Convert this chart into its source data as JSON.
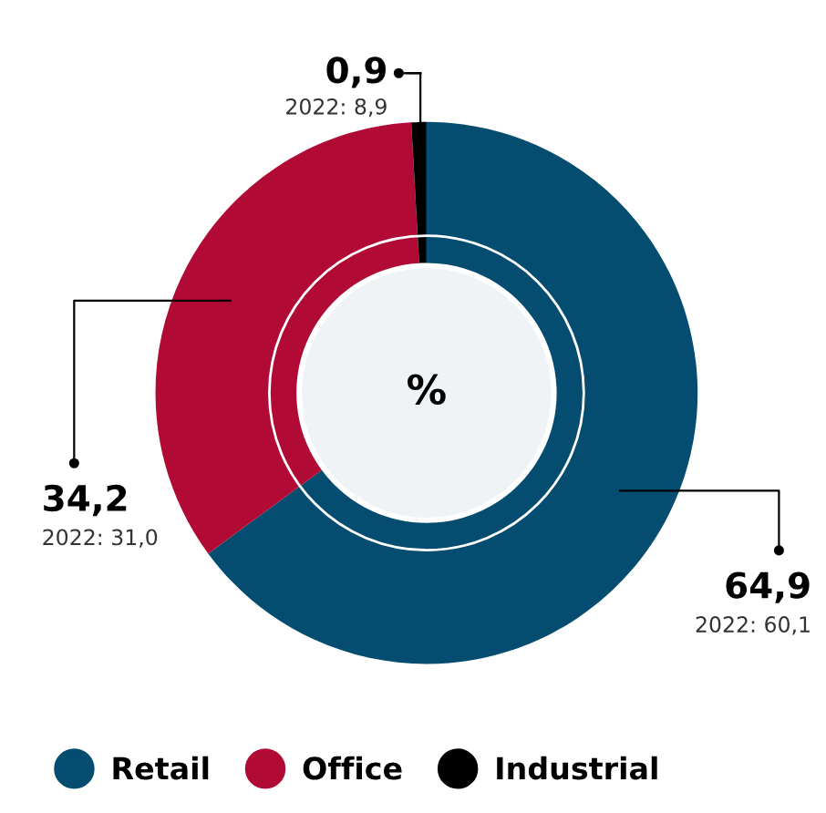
{
  "chart_data": {
    "type": "donut",
    "categories": [
      "Retail",
      "Office",
      "Industrial"
    ],
    "values": [
      64.9,
      34.2,
      0.9
    ],
    "colors": [
      "#044d70",
      "#b00a35",
      "#000000"
    ],
    "value_labels": [
      "64,9",
      "34,2",
      "0,9"
    ],
    "annotations": [
      "%",
      {
        "text": "2022: 60,1",
        "x": "Retail"
      },
      {
        "text": "2022: 31,0",
        "x": "Office"
      },
      {
        "text": "2022: 8,9",
        "x": "Industrial"
      }
    ],
    "legend": "bottom"
  }
}
